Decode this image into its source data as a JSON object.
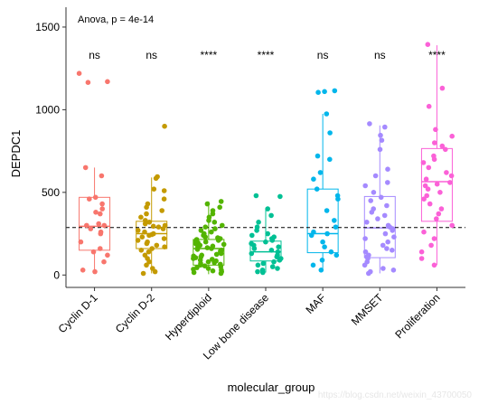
{
  "chart_data": {
    "type": "box",
    "annotation": "Anova, p = 4e-14",
    "xlabel": "molecular_group",
    "ylabel": "DEPDC1",
    "ylim": [
      -75,
      1620
    ],
    "yticks": [
      0,
      500,
      1000,
      1500
    ],
    "grid": false,
    "reference_line_y": 287,
    "categories": [
      "Cyclin D-1",
      "Cyclin D-2",
      "Hyperdiploid",
      "Low bone disease",
      "MAF",
      "MMSET",
      "Proliferation"
    ],
    "significance": [
      "ns",
      "ns",
      "****",
      "****",
      "ns",
      "ns",
      "****"
    ],
    "colors": [
      "#F8766D",
      "#C49A00",
      "#53B400",
      "#00C094",
      "#00B6EB",
      "#A58AFF",
      "#FB61D7"
    ],
    "series": [
      {
        "q1": 150,
        "median": 295,
        "q3": 470,
        "whisker_low": 20,
        "whisker_high": 650,
        "points": [
          1220,
          1170,
          1165,
          650,
          600,
          470,
          460,
          430,
          400,
          380,
          370,
          310,
          300,
          300,
          280,
          260,
          250,
          200,
          160,
          140,
          120,
          80,
          30,
          20
        ]
      },
      {
        "q1": 160,
        "median": 250,
        "q3": 325,
        "whisker_low": 10,
        "whisker_high": 590,
        "points": [
          900,
          595,
          585,
          520,
          510,
          460,
          430,
          410,
          390,
          370,
          350,
          330,
          320,
          310,
          300,
          295,
          290,
          280,
          270,
          260,
          250,
          245,
          240,
          230,
          220,
          210,
          200,
          190,
          180,
          170,
          160,
          150,
          140,
          120,
          100,
          80,
          60,
          40,
          20,
          10
        ]
      },
      {
        "q1": 60,
        "median": 160,
        "q3": 215,
        "whisker_low": 5,
        "whisker_high": 445,
        "points": [
          445,
          430,
          410,
          390,
          370,
          350,
          330,
          320,
          300,
          290,
          280,
          270,
          260,
          250,
          240,
          230,
          225,
          220,
          215,
          210,
          205,
          200,
          195,
          190,
          185,
          180,
          175,
          170,
          165,
          160,
          155,
          150,
          145,
          140,
          135,
          130,
          125,
          120,
          115,
          110,
          105,
          100,
          95,
          90,
          85,
          80,
          75,
          70,
          65,
          60,
          55,
          50,
          45,
          40,
          35,
          30,
          25,
          20,
          15,
          10
        ]
      },
      {
        "q1": 85,
        "median": 140,
        "q3": 205,
        "whisker_low": 15,
        "whisker_high": 400,
        "points": [
          480,
          475,
          400,
          360,
          320,
          290,
          270,
          250,
          240,
          230,
          220,
          210,
          200,
          190,
          180,
          170,
          160,
          150,
          140,
          130,
          120,
          110,
          100,
          90,
          80,
          70,
          60,
          50,
          40,
          30,
          20,
          15
        ]
      },
      {
        "q1": 135,
        "median": 250,
        "q3": 520,
        "whisker_low": 30,
        "whisker_high": 975,
        "points": [
          1115,
          1110,
          1105,
          975,
          860,
          720,
          700,
          620,
          580,
          520,
          480,
          460,
          390,
          330,
          290,
          260,
          250,
          240,
          200,
          170,
          140,
          120,
          90,
          60,
          30
        ]
      },
      {
        "q1": 105,
        "median": 285,
        "q3": 475,
        "whisker_low": 10,
        "whisker_high": 905,
        "points": [
          915,
          895,
          845,
          815,
          760,
          640,
          600,
          560,
          540,
          500,
          470,
          450,
          420,
          400,
          380,
          360,
          340,
          320,
          300,
          290,
          280,
          270,
          250,
          230,
          220,
          200,
          180,
          160,
          150,
          140,
          120,
          110,
          100,
          80,
          60,
          40,
          30,
          20,
          10
        ]
      },
      {
        "q1": 325,
        "median": 565,
        "q3": 765,
        "whisker_low": 60,
        "whisker_high": 1390,
        "points": [
          1395,
          1130,
          1020,
          880,
          840,
          800,
          780,
          760,
          720,
          700,
          680,
          650,
          620,
          600,
          580,
          560,
          550,
          540,
          520,
          500,
          480,
          460,
          430,
          400,
          370,
          340,
          300,
          260,
          220,
          180,
          140,
          100,
          60
        ]
      }
    ]
  },
  "watermark": "https://blog.csdn.net/weixin_43700050"
}
